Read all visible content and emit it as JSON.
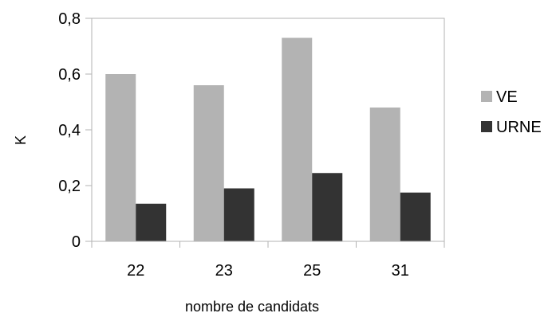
{
  "chart_data": {
    "type": "bar",
    "categories": [
      "22",
      "23",
      "25",
      "31"
    ],
    "series": [
      {
        "name": "VE",
        "values": [
          0.6,
          0.56,
          0.73,
          0.48
        ],
        "color": "#b3b3b3"
      },
      {
        "name": "URNE",
        "values": [
          0.135,
          0.19,
          0.245,
          0.175
        ],
        "color": "#333333"
      }
    ],
    "xlabel": "nombre de candidats",
    "ylabel": "K",
    "ylim": [
      0,
      0.8
    ],
    "yticks": [
      {
        "value": 0,
        "label": "0"
      },
      {
        "value": 0.2,
        "label": "0,2"
      },
      {
        "value": 0.4,
        "label": "0,4"
      },
      {
        "value": 0.6,
        "label": "0,6"
      },
      {
        "value": 0.8,
        "label": "0,8"
      }
    ],
    "grid": false,
    "legend": "right"
  }
}
